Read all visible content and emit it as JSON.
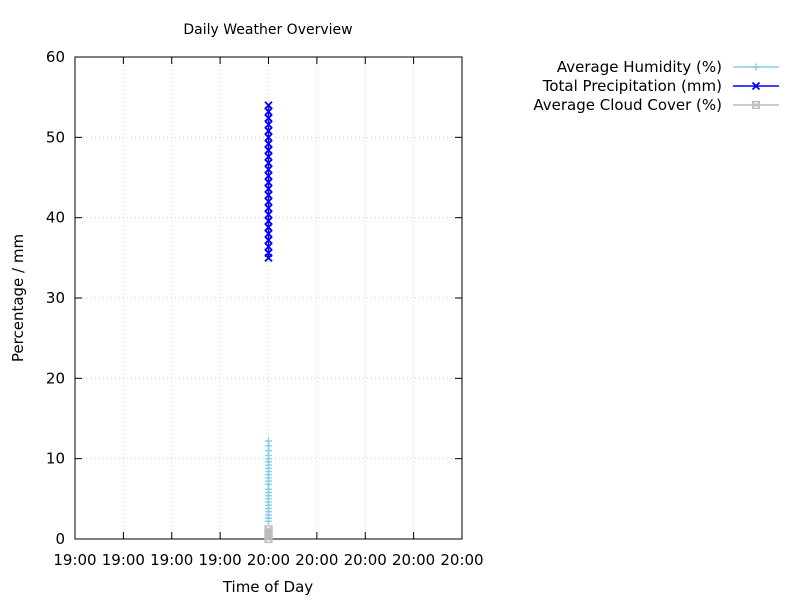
{
  "chart_data": {
    "type": "line",
    "title": "Daily Weather Overview",
    "xlabel": "Time of Day",
    "ylabel": "Percentage / mm",
    "ylim": [
      0,
      60
    ],
    "yticks": [
      "0",
      "10",
      "20",
      "30",
      "40",
      "50",
      "60"
    ],
    "xticks": [
      "19:00",
      "19:00",
      "19:00",
      "19:00",
      "20:00",
      "20:00",
      "20:00",
      "20:00",
      "20:00"
    ],
    "grid": true,
    "legend_position": "outside-top-right",
    "x_value": "20:00",
    "series": [
      {
        "name": "Average Humidity (%)",
        "color": "#87ceeb",
        "marker": "plus",
        "values": [
          12.2,
          11.6,
          11.0,
          10.4,
          10.0,
          9.6,
          9.2,
          8.8,
          8.4,
          8.0,
          7.6,
          7.2,
          6.8,
          6.2,
          5.8,
          5.4,
          5.0,
          4.6,
          4.2,
          3.8,
          3.4,
          3.0,
          2.6,
          2.2
        ]
      },
      {
        "name": "Total Precipitation (mm)",
        "color": "#0000ff",
        "marker": "x",
        "values": [
          54.0,
          53.2,
          52.4,
          51.6,
          50.8,
          50.0,
          49.2,
          48.4,
          47.6,
          46.8,
          46.0,
          45.2,
          44.4,
          43.6,
          42.8,
          42.0,
          41.2,
          40.4,
          39.6,
          38.8,
          38.0,
          37.2,
          36.4,
          35.6,
          35.0
        ]
      },
      {
        "name": "Average Cloud Cover (%)",
        "color": "#bbbbbb",
        "marker": "square",
        "values": [
          1.2,
          0.8,
          0.4,
          0.0
        ]
      }
    ]
  }
}
